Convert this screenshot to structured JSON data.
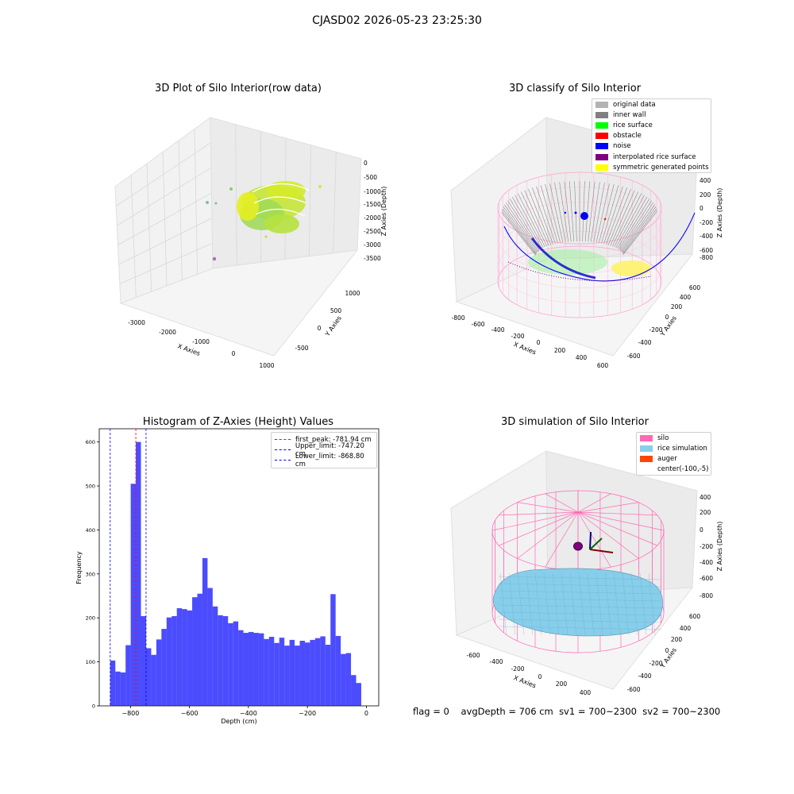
{
  "figure": {
    "title": "CJASD02 2026-05-23 23:25:30",
    "status": {
      "flag": "flag = 0",
      "avg_depth": "avgDepth = 706 cm",
      "sv1": "sv1 = 700~2300",
      "sv2": "sv2 = 700~2300"
    }
  },
  "panels": {
    "raw": {
      "title": "3D Plot of Silo Interior(row data)",
      "xlabel": "X Axies",
      "ylabel": "Y Axies",
      "zlabel": "Z Axies (Depth)",
      "xticks": [
        "-3000",
        "-2000",
        "-1000",
        "0",
        "1000"
      ],
      "yticks": [
        "-500",
        "0",
        "500",
        "1000"
      ],
      "zticks": [
        "0",
        "-500",
        "-1000",
        "-1500",
        "-2000",
        "-2500",
        "-3000",
        "-3500"
      ]
    },
    "classify": {
      "title": "3D classify of Silo Interior",
      "xlabel": "X Axies",
      "ylabel": "Y Axies",
      "zlabel": "Z Axies (Depth)",
      "xticks": [
        "-800",
        "-600",
        "-400",
        "-200",
        "0",
        "200",
        "400",
        "600"
      ],
      "yticks": [
        "-600",
        "-400",
        "-200",
        "0",
        "200",
        "400",
        "600"
      ],
      "zticks": [
        "400",
        "200",
        "0",
        "-200",
        "-400",
        "-600",
        "-800"
      ],
      "legend": [
        {
          "label": "original data",
          "color": "#b3b3b3"
        },
        {
          "label": "inner wall",
          "color": "#808080"
        },
        {
          "label": "rice surface",
          "color": "#00ff00"
        },
        {
          "label": "obstacle",
          "color": "#ff0000"
        },
        {
          "label": "noise",
          "color": "#0000ff"
        },
        {
          "label": "interpolated rice surface",
          "color": "#800080"
        },
        {
          "label": "symmetric generated points",
          "color": "#ffff00"
        }
      ]
    },
    "simulation": {
      "title": "3D simulation of Silo Interior",
      "xlabel": "X Axies",
      "ylabel": "Y Axies",
      "zlabel": "Z Axies (Depth)",
      "xticks": [
        "-600",
        "-400",
        "-200",
        "0",
        "200",
        "400"
      ],
      "yticks": [
        "-600",
        "-400",
        "-200",
        "0",
        "200",
        "400",
        "600"
      ],
      "zticks": [
        "400",
        "200",
        "0",
        "-200",
        "-400",
        "-600",
        "-800"
      ],
      "legend": [
        {
          "label": "silo",
          "color": "#ff69b4"
        },
        {
          "label": "rice simulation",
          "color": "#87ceeb"
        },
        {
          "label": "auger",
          "color": "#ff4500"
        },
        {
          "label": "center(-100,-5)",
          "color": ""
        }
      ]
    }
  },
  "chart_data": {
    "type": "bar",
    "title": "Histogram of Z-Axies (Height) Values",
    "xlabel": "Depth (cm)",
    "ylabel": "Frequency",
    "xlim": [
      -906,
      42
    ],
    "ylim": [
      0,
      630
    ],
    "xticks": [
      -800,
      -600,
      -400,
      -200,
      0
    ],
    "yticks": [
      0,
      100,
      200,
      300,
      400,
      500,
      600
    ],
    "bin_start": -868.8,
    "bin_width": 17.376,
    "values": [
      103,
      78,
      76,
      138,
      505,
      600,
      204,
      131,
      116,
      151,
      175,
      201,
      204,
      222,
      220,
      217,
      247,
      255,
      336,
      268,
      226,
      206,
      204,
      188,
      192,
      172,
      166,
      168,
      166,
      165,
      152,
      157,
      143,
      155,
      137,
      150,
      137,
      148,
      144,
      150,
      154,
      158,
      139,
      254,
      159,
      118,
      120,
      70,
      52
    ],
    "bar_color": "#0000ff",
    "vlines": [
      {
        "label": "first_peak: -781.94 cm",
        "x": -781.94,
        "color": "#ff0000"
      },
      {
        "label": "Upper_limit: -747.20 cm",
        "x": -747.2,
        "color": "#0000ff"
      },
      {
        "label": "Lower_limit: -868.80 cm",
        "x": -868.8,
        "color": "#0000ff"
      }
    ],
    "legend_position": "upper right"
  }
}
